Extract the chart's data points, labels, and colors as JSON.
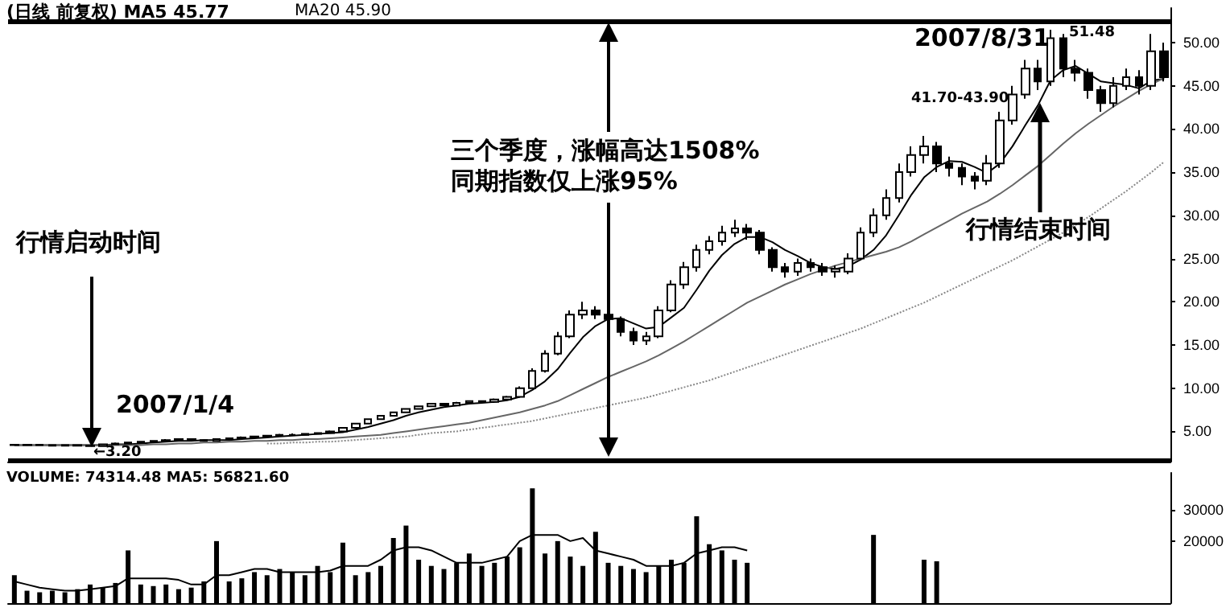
{
  "chart_data": [
    {
      "type": "candlestick",
      "color": "#000000",
      "marker": "none",
      "tick_labels": "y",
      "categories": [
        null,
        null,
        null,
        null,
        null,
        null,
        null,
        null,
        null,
        null,
        null,
        null,
        null,
        null,
        null,
        null,
        null,
        null,
        null,
        null,
        null,
        null,
        null,
        null,
        null,
        null,
        null,
        null,
        null,
        null,
        null,
        null,
        null,
        null,
        null,
        null,
        null,
        null,
        null,
        null,
        null,
        null,
        null,
        null,
        null,
        null,
        null,
        null,
        null,
        null,
        null,
        null,
        null,
        null,
        null,
        null,
        null,
        null,
        null,
        null,
        null,
        null,
        null,
        null,
        null,
        null,
        null,
        null,
        null,
        null,
        null,
        null,
        null,
        null,
        null,
        null,
        null,
        null,
        null,
        null,
        null,
        null,
        null,
        null,
        null,
        null,
        null,
        null,
        null,
        null,
        null,
        null
      ],
      "ohlc": [
        [
          3.45,
          3.5,
          3.35,
          3.4
        ],
        [
          3.4,
          3.5,
          3.35,
          3.45
        ],
        [
          3.45,
          3.5,
          3.35,
          3.4
        ],
        [
          3.4,
          3.45,
          3.3,
          3.35
        ],
        [
          3.35,
          3.45,
          3.3,
          3.4
        ],
        [
          3.4,
          3.45,
          3.3,
          3.35
        ],
        [
          3.35,
          3.4,
          3.2,
          3.3
        ],
        [
          3.3,
          3.6,
          3.3,
          3.5
        ],
        [
          3.5,
          3.7,
          3.45,
          3.6
        ],
        [
          3.6,
          3.8,
          3.55,
          3.7
        ],
        [
          3.7,
          3.9,
          3.65,
          3.8
        ],
        [
          3.8,
          4.0,
          3.75,
          3.9
        ],
        [
          3.9,
          4.1,
          3.85,
          4.0
        ],
        [
          4.0,
          4.2,
          3.95,
          4.1
        ],
        [
          4.1,
          4.2,
          3.95,
          4.0
        ],
        [
          4.0,
          4.05,
          3.8,
          3.9
        ],
        [
          3.9,
          4.2,
          3.85,
          4.1
        ],
        [
          4.1,
          4.3,
          4.05,
          4.2
        ],
        [
          4.2,
          4.4,
          4.15,
          4.3
        ],
        [
          4.3,
          4.5,
          4.25,
          4.4
        ],
        [
          4.4,
          4.6,
          4.35,
          4.5
        ],
        [
          4.5,
          4.7,
          4.45,
          4.6
        ],
        [
          4.6,
          4.75,
          4.5,
          4.6
        ],
        [
          4.6,
          4.8,
          4.55,
          4.7
        ],
        [
          4.7,
          4.9,
          4.65,
          4.8
        ],
        [
          4.8,
          5.1,
          4.75,
          5.0
        ],
        [
          5.0,
          5.5,
          4.95,
          5.4
        ],
        [
          5.4,
          6.0,
          5.35,
          5.9
        ],
        [
          5.9,
          6.5,
          5.85,
          6.4
        ],
        [
          6.4,
          6.9,
          6.35,
          6.8
        ],
        [
          6.8,
          7.3,
          6.75,
          7.2
        ],
        [
          7.2,
          7.7,
          7.15,
          7.6
        ],
        [
          7.6,
          8.0,
          7.5,
          7.9
        ],
        [
          7.9,
          8.3,
          7.8,
          8.2
        ],
        [
          8.2,
          8.3,
          7.9,
          8.0
        ],
        [
          8.0,
          8.4,
          7.9,
          8.3
        ],
        [
          8.3,
          8.6,
          8.2,
          8.5
        ],
        [
          8.5,
          8.6,
          8.3,
          8.4
        ],
        [
          8.4,
          8.8,
          8.3,
          8.7
        ],
        [
          8.7,
          9.1,
          8.6,
          9.0
        ],
        [
          9.0,
          10.2,
          8.9,
          10
        ],
        [
          10,
          12.3,
          9.9,
          12
        ],
        [
          12,
          14.4,
          11.8,
          14
        ],
        [
          14,
          16.5,
          13.8,
          16
        ],
        [
          16,
          19,
          15.8,
          18.5
        ],
        [
          18.5,
          20,
          18,
          19
        ],
        [
          19,
          19.5,
          18,
          18.5
        ],
        [
          18.5,
          19,
          17.5,
          18
        ],
        [
          18,
          18.3,
          16,
          16.5
        ],
        [
          16.5,
          17,
          15,
          15.5
        ],
        [
          15.5,
          16.5,
          15,
          16
        ],
        [
          16,
          19.5,
          15.8,
          19
        ],
        [
          19,
          22.5,
          18.8,
          22
        ],
        [
          22,
          24.6,
          21.5,
          24
        ],
        [
          24,
          26.6,
          23.5,
          26
        ],
        [
          26,
          27.6,
          25.5,
          27
        ],
        [
          27,
          28.8,
          26.5,
          28
        ],
        [
          28,
          29.5,
          27.5,
          28.5
        ],
        [
          28.5,
          29,
          27.2,
          28
        ],
        [
          28,
          28.3,
          25.5,
          26
        ],
        [
          26,
          26.3,
          23.5,
          24
        ],
        [
          24,
          24.5,
          22.8,
          23.5
        ],
        [
          23.5,
          25,
          23,
          24.5
        ],
        [
          24.5,
          25,
          23.5,
          24
        ],
        [
          24,
          24.5,
          23,
          23.5
        ],
        [
          23.5,
          24.2,
          22.8,
          23.8
        ],
        [
          23.5,
          25.6,
          23.2,
          25
        ],
        [
          25,
          28.6,
          24.8,
          28
        ],
        [
          28,
          30.8,
          27.5,
          30
        ],
        [
          30,
          33,
          29.5,
          32
        ],
        [
          32,
          36,
          31.5,
          35
        ],
        [
          35,
          38,
          34.5,
          37
        ],
        [
          37,
          39.2,
          36,
          38
        ],
        [
          38,
          38.5,
          35,
          36
        ],
        [
          36,
          36.8,
          34.5,
          35.5
        ],
        [
          35.5,
          36,
          33.5,
          34.5
        ],
        [
          34.5,
          35,
          33,
          34
        ],
        [
          34,
          37,
          33.5,
          36
        ],
        [
          36,
          42,
          35.5,
          41
        ],
        [
          41,
          45,
          40.5,
          44
        ],
        [
          44,
          48,
          43.5,
          47
        ],
        [
          47,
          48,
          44.5,
          45.5
        ],
        [
          45.5,
          51.48,
          45,
          50.5
        ],
        [
          50.5,
          51,
          46,
          47
        ],
        [
          47,
          48,
          45.5,
          46.5
        ],
        [
          46.5,
          47,
          43.5,
          44.5
        ],
        [
          44.5,
          45,
          42,
          43
        ],
        [
          43,
          46,
          42.5,
          45
        ],
        [
          45,
          47,
          44.5,
          46
        ],
        [
          46,
          46.8,
          44,
          45
        ],
        [
          45,
          51,
          44.5,
          49
        ],
        [
          49,
          50,
          45.5,
          46
        ]
      ],
      "series": [
        {
          "type": "line",
          "color": "#000000",
          "values": [
            3.4,
            3.4,
            3.4,
            3.4,
            3.4,
            3.4,
            3.4,
            3.4,
            3.5,
            3.5,
            3.6,
            3.7,
            3.8,
            3.9,
            3.9,
            4.0,
            4.0,
            4.0,
            4.1,
            4.2,
            4.3,
            4.4,
            4.5,
            4.6,
            4.7,
            4.8,
            4.9,
            5.2,
            5.5,
            5.9,
            6.3,
            6.8,
            7.2,
            7.5,
            7.8,
            8.0,
            8.2,
            8.3,
            8.4,
            8.6,
            9.0,
            9.8,
            10.8,
            12.2,
            14.1,
            15.9,
            17.2,
            18.0,
            18.1,
            17.5,
            16.9,
            17.1,
            18.2,
            19.3,
            21.4,
            23.6,
            25.4,
            26.7,
            27.5,
            27.5,
            26.9,
            26.0,
            25.3,
            24.5,
            24.0,
            23.8,
            24.1,
            24.9,
            26.0,
            27.7,
            30.0,
            32.4,
            34.4,
            35.6,
            36.3,
            36.2,
            35.6,
            34.9,
            36.0,
            38.0,
            40.4,
            42.7,
            45.6,
            46.8,
            47.3,
            46.4,
            45.5,
            45.3,
            45.1,
            44.7,
            45.6,
            45.8
          ]
        },
        {
          "type": "line",
          "color": "#666666",
          "values": [
            3.4,
            3.4,
            3.4,
            3.4,
            3.4,
            3.4,
            3.4,
            3.4,
            3.4,
            3.4,
            3.4,
            3.5,
            3.5,
            3.6,
            3.6,
            3.7,
            3.7,
            3.8,
            3.8,
            3.9,
            3.9,
            4.0,
            4.0,
            4.1,
            4.1,
            4.2,
            4.3,
            4.4,
            4.5,
            4.6,
            4.8,
            5.0,
            5.2,
            5.4,
            5.6,
            5.8,
            6.0,
            6.3,
            6.6,
            6.9,
            7.2,
            7.6,
            8.0,
            8.5,
            9.2,
            9.9,
            10.6,
            11.3,
            11.9,
            12.5,
            13.1,
            13.8,
            14.6,
            15.4,
            16.3,
            17.2,
            18.1,
            19.0,
            19.9,
            20.6,
            21.3,
            22.0,
            22.6,
            23.2,
            23.7,
            24.2,
            24.6,
            25.0,
            25.4,
            25.8,
            26.3,
            27.0,
            27.8,
            28.6,
            29.4,
            30.2,
            30.9,
            31.6,
            32.5,
            33.5,
            34.6,
            35.7,
            37.0,
            38.3,
            39.5,
            40.6,
            41.6,
            42.6,
            43.5,
            44.4,
            45.2,
            45.9
          ]
        },
        {
          "type": "line",
          "color": "#888888",
          "line_style": "dotted",
          "values": [
            null,
            null,
            null,
            null,
            null,
            null,
            null,
            null,
            null,
            null,
            null,
            null,
            null,
            null,
            null,
            null,
            null,
            null,
            null,
            null,
            3.6,
            3.6,
            3.7,
            3.7,
            3.8,
            3.8,
            3.9,
            4.0,
            4.1,
            4.2,
            4.3,
            4.4,
            4.6,
            4.8,
            4.9,
            5.0,
            5.2,
            5.4,
            5.6,
            5.8,
            6.0,
            6.2,
            6.5,
            6.8,
            7.1,
            7.4,
            7.7,
            8.0,
            8.3,
            8.6,
            8.9,
            9.3,
            9.7,
            10.1,
            10.5,
            10.9,
            11.4,
            11.9,
            12.4,
            12.9,
            13.4,
            13.9,
            14.4,
            14.9,
            15.4,
            15.9,
            16.4,
            16.9,
            17.5,
            18.1,
            18.7,
            19.3,
            19.9,
            20.6,
            21.3,
            22.0,
            22.7,
            23.4,
            24.1,
            24.8,
            25.6,
            26.4,
            27.2,
            28.0,
            28.9,
            29.8,
            30.8,
            31.8,
            32.8,
            33.9,
            35.0,
            36.2
          ]
        }
      ],
      "ylim": [
        1.5,
        54
      ],
      "yticks": [
        {
          "value": 5,
          "label": "5.00"
        },
        {
          "value": 10,
          "label": "10.00"
        },
        {
          "value": 15,
          "label": "15.00"
        },
        {
          "value": 20,
          "label": "20.00"
        },
        {
          "value": 25,
          "label": "25.00"
        },
        {
          "value": 30,
          "label": "30.00"
        },
        {
          "value": 35,
          "label": "35.00"
        },
        {
          "value": 40,
          "label": "40.00"
        },
        {
          "value": 45,
          "label": "45.00"
        },
        {
          "value": 50,
          "label": "50.00"
        }
      ],
      "ref_lines": [
        {
          "axis": "y",
          "value": 52.4,
          "color": "#000000"
        },
        {
          "axis": "y",
          "value": 1.7,
          "color": "#000000"
        }
      ],
      "annotations": [
        "(日线 前复权) MA5 45.77",
        "MA20 45.90",
        "三个季度，涨幅高达1508%",
        "同期指数仅上涨95%",
        "行情启动时间",
        "2007/1/4",
        "←3.20",
        "2007/8/31",
        "51.48",
        "41.70-43.90",
        "行情结束时间"
      ]
    },
    {
      "type": "bar",
      "tick_labels": "y",
      "categories": [
        null,
        null,
        null,
        null,
        null,
        null,
        null,
        null,
        null,
        null,
        null,
        null,
        null,
        null,
        null,
        null,
        null,
        null,
        null,
        null,
        null,
        null,
        null,
        null,
        null,
        null,
        null,
        null,
        null,
        null,
        null,
        null,
        null,
        null,
        null,
        null,
        null,
        null,
        null,
        null,
        null,
        null,
        null,
        null,
        null,
        null,
        null,
        null,
        null,
        null,
        null,
        null,
        null,
        null,
        null,
        null,
        null,
        null,
        null,
        null,
        null,
        null,
        null,
        null,
        null,
        null,
        null,
        null,
        null,
        null,
        null,
        null,
        null,
        null,
        null,
        null,
        null,
        null,
        null,
        null,
        null,
        null,
        null,
        null,
        null,
        null,
        null,
        null,
        null,
        null,
        null,
        null
      ],
      "series": [
        {
          "type": "bar",
          "color": "#000000",
          "values": [
            9000,
            4000,
            3500,
            4000,
            3500,
            4500,
            6000,
            5000,
            6500,
            17000,
            6000,
            5500,
            6000,
            4500,
            5000,
            7000,
            20000,
            7000,
            8000,
            10000,
            9000,
            11000,
            10000,
            9000,
            12000,
            10000,
            19500,
            9000,
            10000,
            12000,
            21000,
            25000,
            14000,
            12000,
            11000,
            13000,
            16000,
            12000,
            13000,
            15000,
            18000,
            37000,
            16000,
            20000,
            15000,
            12000,
            23000,
            13000,
            12000,
            11000,
            10000,
            12000,
            14000,
            13000,
            28000,
            19000,
            17000,
            14000,
            13000,
            null,
            null,
            null,
            null,
            null,
            null,
            null,
            null,
            null,
            22000,
            null,
            null,
            null,
            14000,
            13500,
            null,
            null,
            null,
            null,
            null,
            null,
            null,
            null,
            null,
            null,
            null,
            null,
            null,
            null,
            null,
            null,
            null,
            null
          ]
        },
        {
          "type": "line",
          "color": "#000000",
          "values": [
            7000,
            6000,
            5000,
            4500,
            4000,
            4000,
            4500,
            5000,
            5500,
            8000,
            8000,
            8000,
            8000,
            7500,
            6000,
            6000,
            9000,
            9000,
            10000,
            11000,
            11000,
            10000,
            10000,
            10000,
            10000,
            10500,
            12000,
            12000,
            12000,
            14000,
            17000,
            18000,
            18000,
            17000,
            15000,
            13000,
            13000,
            13000,
            14000,
            15000,
            20000,
            22000,
            22000,
            22000,
            20000,
            21000,
            17000,
            16000,
            15000,
            14000,
            12000,
            12000,
            12000,
            13000,
            16000,
            17000,
            18000,
            18000,
            17000,
            null,
            null,
            null,
            null,
            null,
            null,
            null,
            null,
            null,
            null,
            null,
            null,
            null,
            null,
            null,
            null,
            null,
            null,
            null,
            null,
            null,
            null,
            null,
            null,
            null,
            null,
            null,
            null,
            null,
            null,
            null,
            null,
            null
          ]
        }
      ],
      "ylim": [
        0,
        42000
      ],
      "yticks": [
        20000,
        30000
      ],
      "annotations": [
        "VOLUME: 74314.48 MA5: 56821.60"
      ]
    }
  ]
}
